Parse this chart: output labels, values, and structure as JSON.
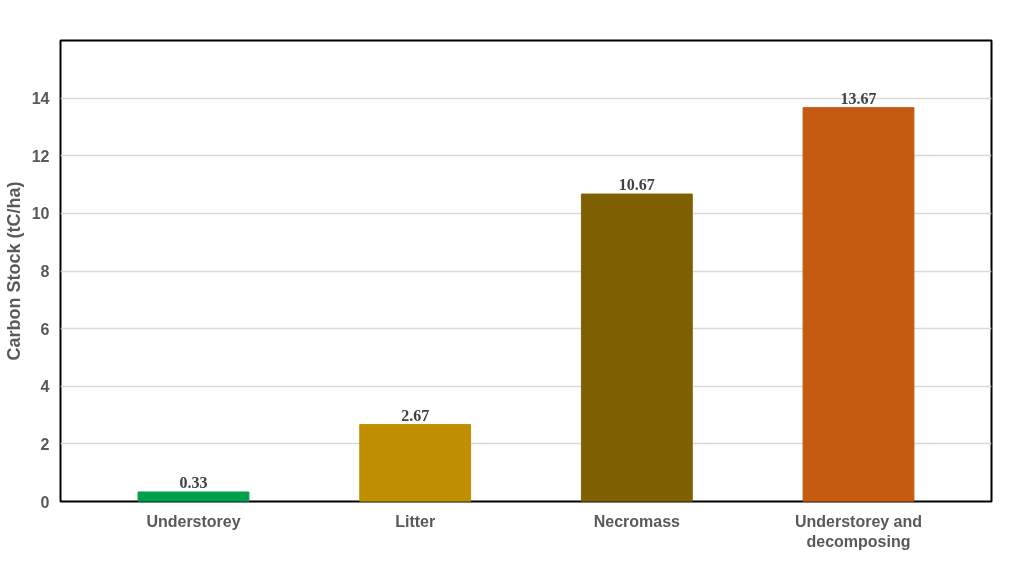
{
  "chart_data": {
    "type": "bar",
    "ylabel": "Carbon Stock (tC/ha)",
    "categories": [
      "Understorey",
      "Litter",
      "Necromass",
      "Understorey and decomposing"
    ],
    "values": [
      0.33,
      2.67,
      10.67,
      13.67
    ],
    "colors": [
      "#00a04a",
      "#bf8f00",
      "#7f6000",
      "#c55a11"
    ],
    "ylim": [
      0,
      16
    ],
    "yticks": [
      0,
      2,
      4,
      6,
      8,
      10,
      12,
      14,
      {
        "value": 16,
        "label": null
      }
    ],
    "grid": "y",
    "data_labels": true
  }
}
